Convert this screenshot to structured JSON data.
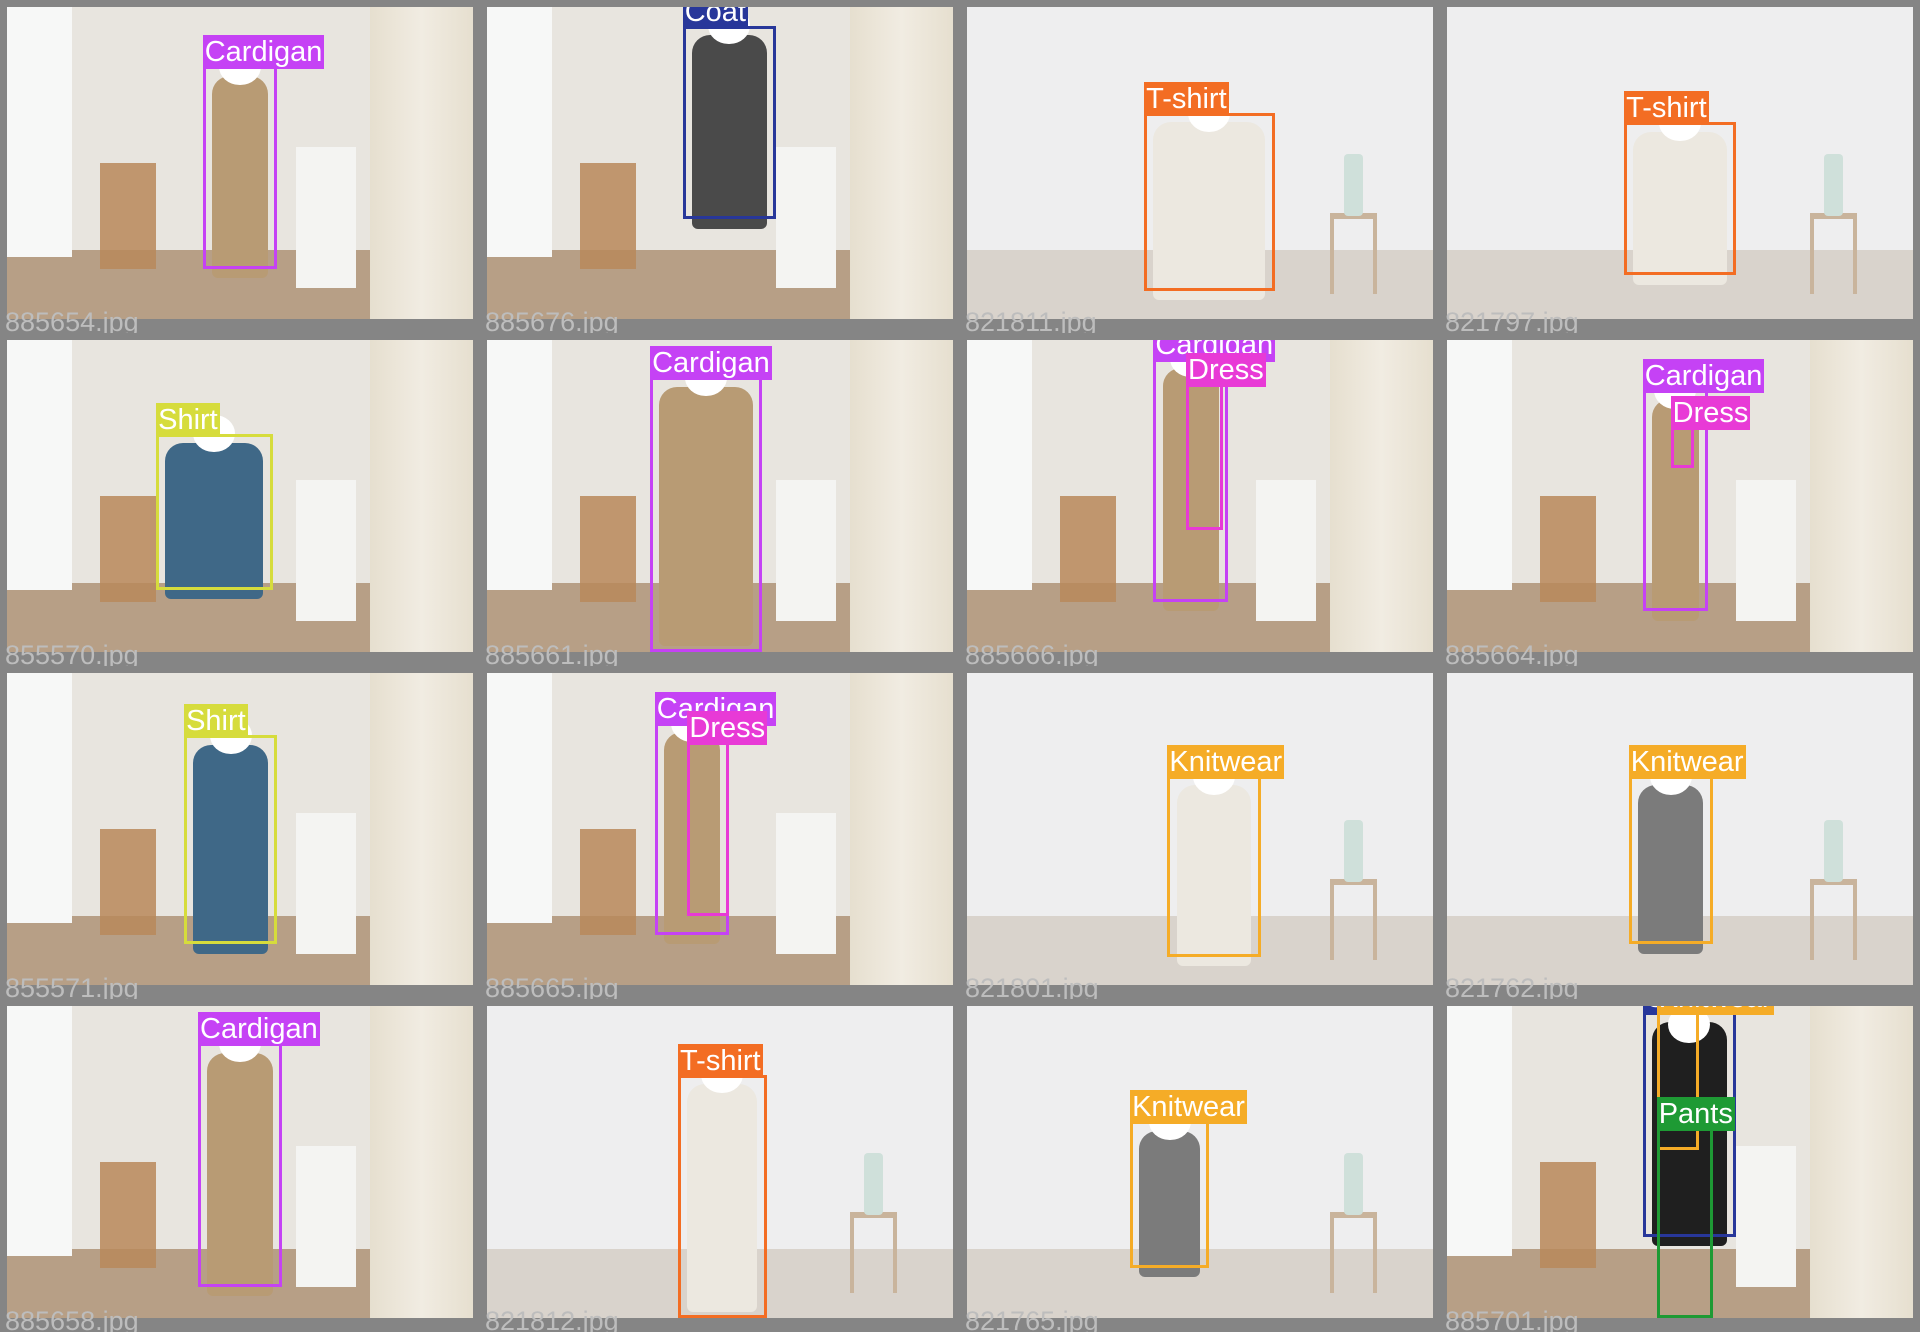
{
  "mosaic": {
    "background": "#808080",
    "tiles": [
      {
        "file": "885654.jpg",
        "labels": [
          "Cardigan"
        ]
      },
      {
        "file": "885676.jpg",
        "labels": [
          "Coat"
        ]
      },
      {
        "file": "821811.jpg",
        "labels": [
          "T-shirt"
        ]
      },
      {
        "file": "821797.jpg",
        "labels": [
          "T-shirt"
        ]
      },
      {
        "file": "855570.jpg",
        "labels": [
          "Shirt"
        ]
      },
      {
        "file": "885661.jpg",
        "labels": [
          "Cardigan"
        ]
      },
      {
        "file": "885666.jpg",
        "labels": [
          "Cardigan",
          "Dress"
        ]
      },
      {
        "file": "885664.jpg",
        "labels": [
          "Cardigan",
          "Dress"
        ]
      },
      {
        "file": "855571.jpg",
        "labels": [
          "Shirt"
        ]
      },
      {
        "file": "885665.jpg",
        "labels": [
          "Cardigan",
          "Dress"
        ]
      },
      {
        "file": "821801.jpg",
        "labels": [
          "Knitwear"
        ]
      },
      {
        "file": "821762.jpg",
        "labels": [
          "Knitwear"
        ]
      },
      {
        "file": "885658.jpg",
        "labels": [
          "Cardigan"
        ]
      },
      {
        "file": "821812.jpg",
        "labels": [
          "T-shirt"
        ]
      },
      {
        "file": "821765.jpg",
        "labels": [
          "Knitwear"
        ]
      },
      {
        "file": "885701.jpg",
        "labels": [
          "Coat",
          "Knitwear",
          "Pants"
        ]
      }
    ]
  },
  "class_colors": {
    "Cardigan": "#c542f5",
    "Coat": "#28379a",
    "T-shirt": "#f36d23",
    "Shirt": "#d6dc3c",
    "Dress": "#e83ad6",
    "Knitwear": "#f5ac27",
    "Pants": "#1e9a34"
  },
  "scene_colors": {
    "wall_warm": "#e8e5df",
    "wall_cool": "#eeeeef",
    "floor_wood": "#b79f86",
    "floor_light": "#d9d3cc",
    "curtain": "#e6dfcf",
    "window": "#f7f8f7",
    "pedestal": "#f4f4f2",
    "stool": "#b9885a",
    "camel": "#b89b74",
    "denim": "#3f6887",
    "charcoal": "#4a4a4a",
    "cream": "#ece8e0",
    "black": "#1f1f1f",
    "grey_knit": "#7b7b7b"
  }
}
